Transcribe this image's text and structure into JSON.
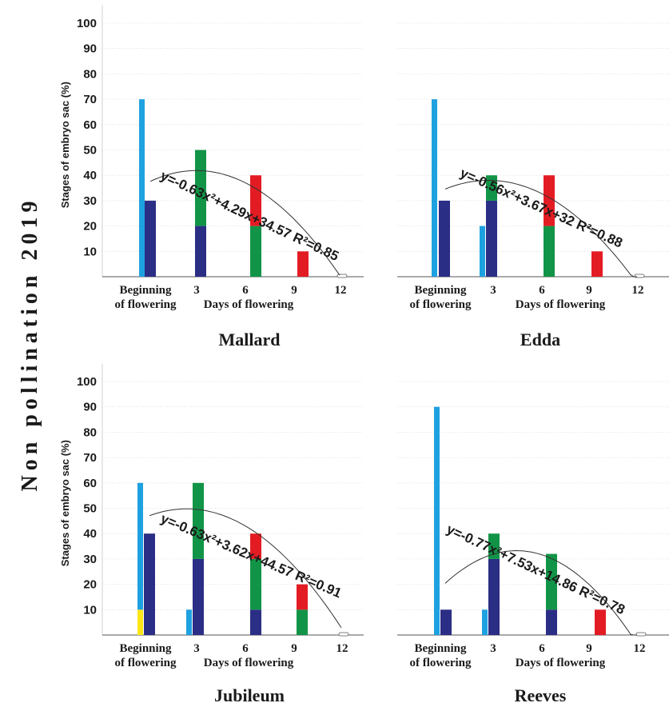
{
  "side_title": "Non pollination 2019",
  "colors": {
    "cyan": "#1ea1e0",
    "navy": "#2b2e85",
    "green": "#119447",
    "red": "#e31c24",
    "yellow": "#fce61a"
  },
  "chart_data": [
    {
      "type": "bar",
      "title": "Mallard",
      "ylabel": "Stages of embryo sac (%)",
      "xlabel": "Days of flowering",
      "categories": [
        "Beginning of flowering",
        "3",
        "6",
        "9",
        "12"
      ],
      "category_label_lines": [
        [
          "Beginning",
          "of flowering"
        ],
        [
          "3"
        ],
        [
          "6"
        ],
        [
          "9"
        ],
        [
          "12"
        ]
      ],
      "yticks": [
        10,
        20,
        30,
        40,
        50,
        60,
        70,
        80,
        90,
        100
      ],
      "ylim": [
        0,
        105
      ],
      "grid": true,
      "equation": "y=-0.63x²+4.29x+34.57 R²=0.85",
      "trend": {
        "a": -0.63,
        "b": 4.29,
        "c": 34.57,
        "r2": 0.85
      },
      "bars": [
        {
          "category": "Beginning of flowering",
          "segments": [
            {
              "color": "cyan",
              "value": 70
            }
          ]
        },
        {
          "category": "Beginning of flowering",
          "segments": [
            {
              "color": "navy",
              "value": 30
            }
          ]
        },
        {
          "category": "3",
          "segments": [
            {
              "color": "navy",
              "value": 20
            },
            {
              "color": "green",
              "value": 30
            }
          ]
        },
        {
          "category": "6",
          "segments": [
            {
              "color": "green",
              "value": 20
            },
            {
              "color": "red",
              "value": 20
            }
          ]
        },
        {
          "category": "9",
          "segments": [
            {
              "color": "red",
              "value": 10
            }
          ]
        }
      ]
    },
    {
      "type": "bar",
      "title": "Edda",
      "ylabel": "",
      "xlabel": "Days of flowering",
      "categories": [
        "Beginning of flowering",
        "3",
        "6",
        "9",
        "12"
      ],
      "category_label_lines": [
        [
          "Beginning",
          "of flowering"
        ],
        [
          "3"
        ],
        [
          "6"
        ],
        [
          "9"
        ],
        [
          "12"
        ]
      ],
      "yticks": [],
      "ylim": [
        0,
        105
      ],
      "grid": true,
      "equation": "y=-0.56x²+3.67x+32 R²=0.88",
      "trend": {
        "a": -0.56,
        "b": 3.67,
        "c": 32,
        "r2": 0.88
      },
      "bars": [
        {
          "category": "Beginning of flowering",
          "segments": [
            {
              "color": "cyan",
              "value": 70
            }
          ]
        },
        {
          "category": "Beginning of flowering",
          "segments": [
            {
              "color": "navy",
              "value": 30
            }
          ]
        },
        {
          "category": "3",
          "segments": [
            {
              "color": "cyan",
              "value": 20
            }
          ]
        },
        {
          "category": "3",
          "segments": [
            {
              "color": "navy",
              "value": 30
            },
            {
              "color": "green",
              "value": 10
            }
          ]
        },
        {
          "category": "6",
          "segments": [
            {
              "color": "green",
              "value": 20
            },
            {
              "color": "red",
              "value": 20
            }
          ]
        },
        {
          "category": "9",
          "segments": [
            {
              "color": "red",
              "value": 10
            }
          ]
        }
      ]
    },
    {
      "type": "bar",
      "title": "Jubileum",
      "ylabel": "Stages of embryo sac (%)",
      "xlabel": "Days of flowering",
      "categories": [
        "Beginning of flowering",
        "3",
        "6",
        "9",
        "12"
      ],
      "category_label_lines": [
        [
          "Beginning",
          "of flowering"
        ],
        [
          "3"
        ],
        [
          "6"
        ],
        [
          "9"
        ],
        [
          "12"
        ]
      ],
      "yticks": [
        10,
        20,
        30,
        40,
        50,
        60,
        70,
        80,
        90,
        100
      ],
      "ylim": [
        0,
        105
      ],
      "grid": true,
      "equation": "y=-0.63x²+3.62x+44.57 R²=0.91",
      "trend": {
        "a": -0.63,
        "b": 3.62,
        "c": 44.57,
        "r2": 0.91
      },
      "bars": [
        {
          "category": "Beginning of flowering",
          "segments": [
            {
              "color": "yellow",
              "value": 10
            },
            {
              "color": "cyan",
              "value": 50
            }
          ]
        },
        {
          "category": "Beginning of flowering",
          "segments": [
            {
              "color": "navy",
              "value": 40
            }
          ]
        },
        {
          "category": "3",
          "segments": [
            {
              "color": "cyan",
              "value": 10
            }
          ]
        },
        {
          "category": "3",
          "segments": [
            {
              "color": "navy",
              "value": 30
            },
            {
              "color": "green",
              "value": 30
            }
          ]
        },
        {
          "category": "6",
          "segments": [
            {
              "color": "navy",
              "value": 10
            },
            {
              "color": "green",
              "value": 20
            },
            {
              "color": "red",
              "value": 10
            }
          ]
        },
        {
          "category": "9",
          "segments": [
            {
              "color": "green",
              "value": 10
            },
            {
              "color": "red",
              "value": 10
            }
          ]
        }
      ]
    },
    {
      "type": "bar",
      "title": "Reeves",
      "ylabel": "",
      "xlabel": "Days of flowering",
      "categories": [
        "Beginning of flowering",
        "3",
        "6",
        "9",
        "12"
      ],
      "category_label_lines": [
        [
          "Beginning",
          "of flowering"
        ],
        [
          "3"
        ],
        [
          "6"
        ],
        [
          "9"
        ],
        [
          "12"
        ]
      ],
      "yticks": [],
      "ylim": [
        0,
        105
      ],
      "grid": true,
      "equation": "y=-0.77x²+7.53x+14.86 R²=0.78",
      "trend": {
        "a": -0.77,
        "b": 7.53,
        "c": 14.86,
        "r2": 0.78
      },
      "bars": [
        {
          "category": "Beginning of flowering",
          "segments": [
            {
              "color": "cyan",
              "value": 90
            }
          ]
        },
        {
          "category": "Beginning of flowering",
          "segments": [
            {
              "color": "navy",
              "value": 10
            }
          ]
        },
        {
          "category": "3",
          "segments": [
            {
              "color": "cyan",
              "value": 10
            }
          ]
        },
        {
          "category": "3",
          "segments": [
            {
              "color": "navy",
              "value": 30
            },
            {
              "color": "green",
              "value": 10
            }
          ]
        },
        {
          "category": "6",
          "segments": [
            {
              "color": "navy",
              "value": 10
            },
            {
              "color": "green",
              "value": 22
            }
          ]
        },
        {
          "category": "9",
          "segments": [
            {
              "color": "red",
              "value": 10
            }
          ]
        }
      ]
    }
  ]
}
